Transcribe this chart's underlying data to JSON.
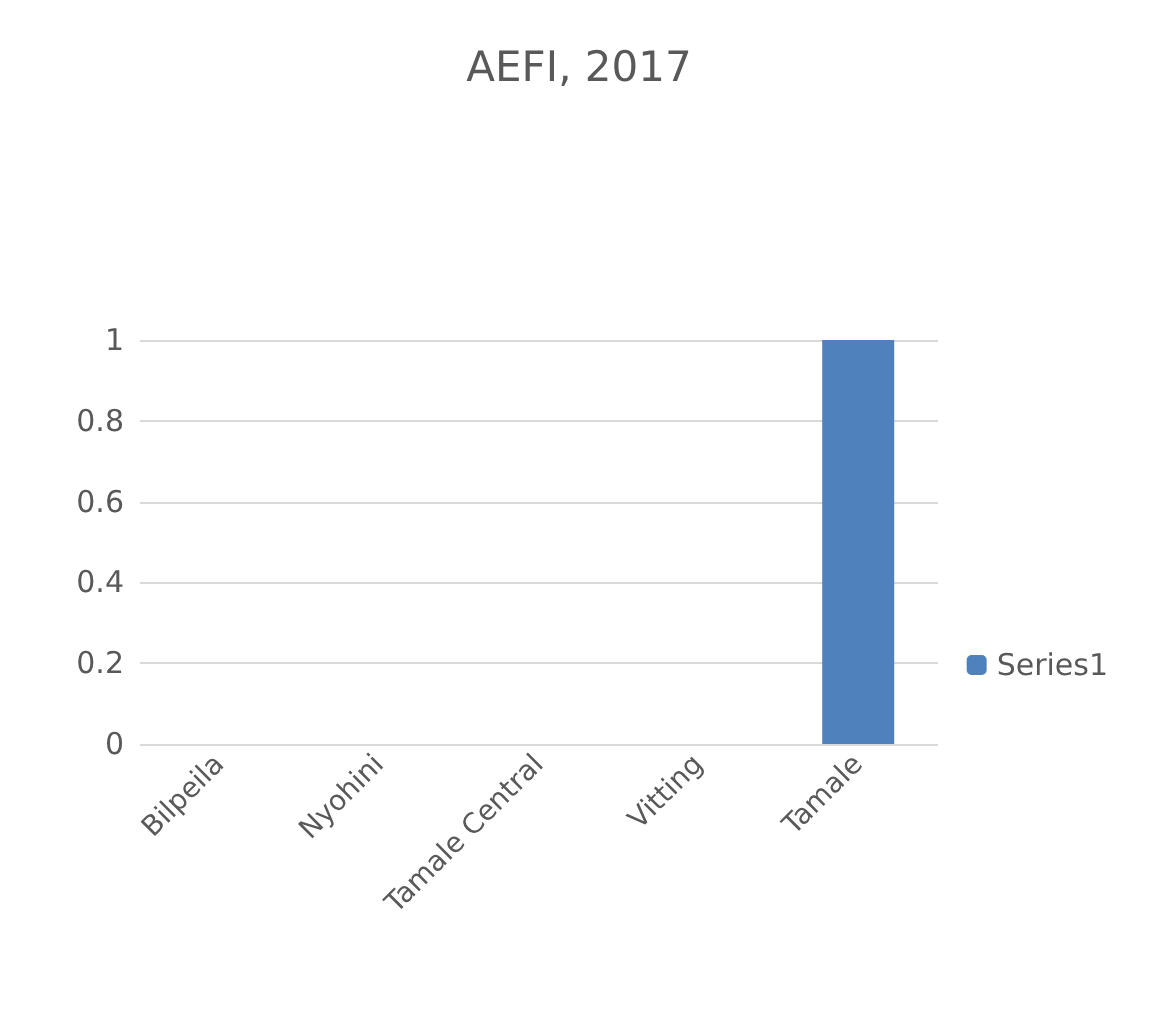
{
  "chart_data": {
    "type": "bar",
    "title": "AEFI, 2017",
    "categories": [
      "Bilpeila",
      "Nyohini",
      "Tamale Central",
      "Vitting",
      "Tamale"
    ],
    "series": [
      {
        "name": "Series1",
        "color": "#4f81bd",
        "values": [
          0,
          0,
          0,
          0,
          1
        ]
      }
    ],
    "ylim": [
      0,
      1
    ],
    "yticks": [
      0,
      0.2,
      0.4,
      0.6,
      0.8,
      1
    ],
    "grid": "y",
    "legend": "right"
  }
}
